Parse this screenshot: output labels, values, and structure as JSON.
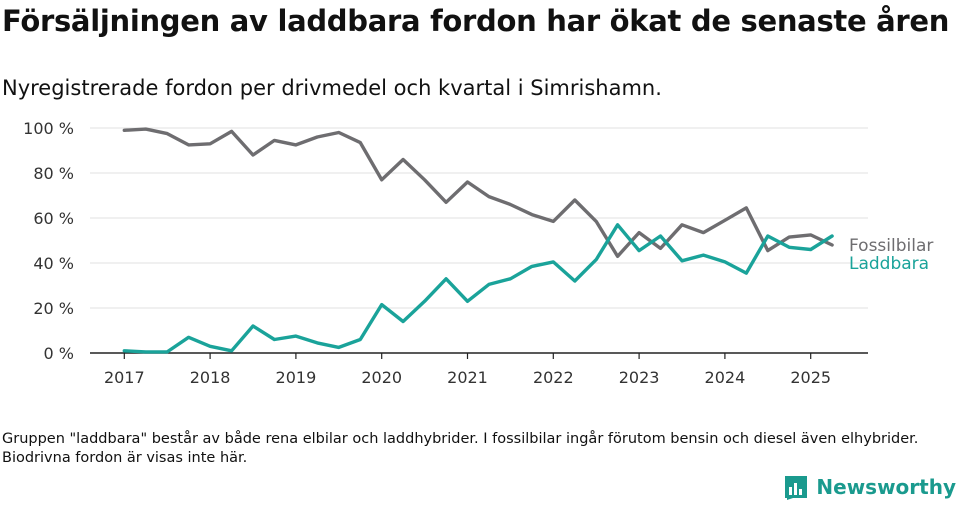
{
  "title": "Försäljningen av laddbara fordon har ökat de senaste åren",
  "subtitle": "Nyregistrerade fordon per drivmedel och kvartal i Simrishamn.",
  "footnote": "Gruppen \"laddbara\" består av både rena elbilar och laddhybrider. I fossilbilar ingår förutom bensin och diesel även elhybrider. Biodrivna fordon är visas inte här.",
  "logo": {
    "text": "Newsworthy",
    "icon": "newsworthy-bar-chart-icon"
  },
  "chart_data": {
    "type": "line",
    "title": "Försäljningen av laddbara fordon har ökat de senaste åren",
    "xlabel": "",
    "ylabel": "",
    "ylim": [
      0,
      100
    ],
    "y_ticks": [
      0,
      20,
      40,
      60,
      80,
      100
    ],
    "y_tick_labels": [
      "0 %",
      "20 %",
      "40 %",
      "60 %",
      "80 %",
      "100 %"
    ],
    "x_ticks": [
      "2017",
      "2018",
      "2019",
      "2020",
      "2021",
      "2022",
      "2023",
      "2024",
      "2025"
    ],
    "x": [
      "2017 Q1",
      "2017 Q2",
      "2017 Q3",
      "2017 Q4",
      "2018 Q1",
      "2018 Q2",
      "2018 Q3",
      "2018 Q4",
      "2019 Q1",
      "2019 Q2",
      "2019 Q3",
      "2019 Q4",
      "2020 Q1",
      "2020 Q2",
      "2020 Q3",
      "2020 Q4",
      "2021 Q1",
      "2021 Q2",
      "2021 Q3",
      "2021 Q4",
      "2022 Q1",
      "2022 Q2",
      "2022 Q3",
      "2022 Q4",
      "2023 Q1",
      "2023 Q2",
      "2023 Q3",
      "2023 Q4",
      "2024 Q1",
      "2024 Q2",
      "2024 Q3",
      "2024 Q4",
      "2025 Q1",
      "2025 Q2"
    ],
    "grid": "horizontal",
    "legend": "direct labels at line ends (right)",
    "series": [
      {
        "name": "Fossilbilar",
        "color": "#6e6d70",
        "values": [
          99,
          99.5,
          97.5,
          92.5,
          93,
          98.5,
          88,
          94.5,
          92.5,
          96,
          98,
          93.5,
          77,
          86,
          77,
          67,
          76,
          69.5,
          66,
          61.5,
          58.5,
          68,
          58.5,
          43,
          53.5,
          46.5,
          57,
          53.5,
          59,
          64.5,
          45.5,
          51.5,
          52.5,
          48
        ]
      },
      {
        "name": "Laddbara",
        "color": "#1aa39a",
        "values": [
          1,
          0.5,
          0.5,
          7,
          3,
          1,
          12,
          6,
          7.5,
          4.5,
          2.5,
          6,
          21.5,
          14,
          23,
          33,
          23,
          30.5,
          33,
          38.5,
          40.5,
          32,
          41.5,
          57,
          45.5,
          52,
          41,
          43.5,
          40.5,
          35.5,
          52,
          47,
          46,
          52
        ]
      }
    ]
  }
}
